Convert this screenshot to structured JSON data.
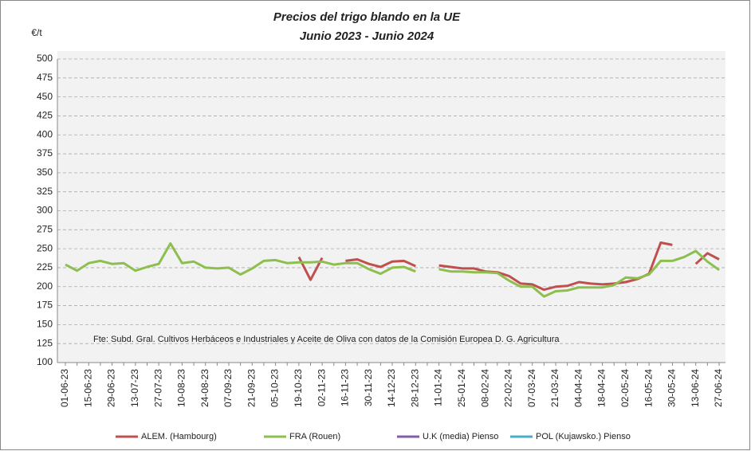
{
  "chart_data": {
    "type": "line",
    "title": "Precios del trigo blando en la UE",
    "subtitle": "Junio 2023 - Junio 2024",
    "y_label": "€/t",
    "annotation": "Fte: Subd. Gral. Cultivos Herbáceos e Industriales y Aceite de Oliva con  datos de la Comisión Europea D. G. Agricultura",
    "categories": [
      "01-06-23",
      null,
      "15-06-23",
      null,
      "29-06-23",
      null,
      "13-07-23",
      null,
      "27-07-23",
      null,
      "10-08-23",
      null,
      "24-08-23",
      null,
      "07-09-23",
      null,
      "21-09-23",
      null,
      "05-10-23",
      null,
      "19-10-23",
      null,
      "02-11-23",
      null,
      "16-11-23",
      null,
      "30-11-23",
      null,
      "14-12-23",
      null,
      "28-12-23",
      null,
      "11-01-24",
      null,
      "25-01-24",
      null,
      "08-02-24",
      null,
      "22-02-24",
      null,
      "07-03-24",
      null,
      "21-03-24",
      null,
      "04-04-24",
      null,
      "18-04-24",
      null,
      "02-05-24",
      null,
      "16-05-24",
      null,
      "30-05-24",
      null,
      "13-06-24",
      null,
      "27-06-24"
    ],
    "series": [
      {
        "name": "ALEM. (Hambourg)",
        "color": "#c0504d",
        "values": [
          null,
          null,
          null,
          null,
          null,
          null,
          null,
          null,
          null,
          null,
          null,
          null,
          null,
          null,
          null,
          null,
          null,
          null,
          null,
          null,
          239,
          209,
          238,
          null,
          234,
          236,
          230,
          226,
          233,
          234,
          227,
          null,
          228,
          226,
          224,
          224,
          220,
          219,
          214,
          204,
          203,
          196,
          200,
          201,
          206,
          204,
          203,
          204,
          206,
          210,
          217,
          258,
          255,
          null,
          230,
          244,
          236
        ]
      },
      {
        "name": "FRA (Rouen)",
        "color": "#8cbf4e",
        "values": [
          229,
          221,
          231,
          234,
          230,
          231,
          221,
          226,
          230,
          257,
          231,
          233,
          225,
          224,
          225,
          216,
          224,
          234,
          235,
          231,
          232,
          232,
          233,
          229,
          231,
          231,
          223,
          217,
          225,
          226,
          220,
          null,
          223,
          220,
          220,
          219,
          219,
          218,
          208,
          200,
          200,
          187,
          194,
          195,
          199,
          199,
          199,
          202,
          212,
          211,
          216,
          234,
          234,
          239,
          247,
          233,
          222
        ]
      },
      {
        "name": "U.K (media) Pienso",
        "color": "#7f5fa8",
        "values": [
          null,
          null,
          null,
          null,
          null,
          null,
          null,
          null,
          null,
          null,
          null,
          null,
          null,
          null,
          null,
          null,
          null,
          null,
          null,
          null,
          null,
          null,
          null,
          null,
          null,
          null,
          null,
          null,
          null,
          null,
          null,
          null,
          null,
          null,
          null,
          null,
          null,
          null,
          null,
          null,
          null,
          null,
          null,
          null,
          null,
          null,
          null,
          null,
          null,
          null,
          null,
          null,
          null,
          null,
          null,
          null,
          null
        ]
      },
      {
        "name": "POL (Kujawsko.) Pienso",
        "color": "#4bacc6",
        "values": [
          null,
          null,
          null,
          null,
          null,
          null,
          null,
          null,
          null,
          null,
          null,
          null,
          null,
          null,
          null,
          null,
          null,
          null,
          null,
          null,
          null,
          null,
          null,
          null,
          null,
          null,
          null,
          null,
          null,
          null,
          null,
          null,
          null,
          null,
          null,
          null,
          null,
          null,
          null,
          null,
          null,
          null,
          null,
          null,
          null,
          null,
          null,
          null,
          null,
          null,
          null,
          null,
          null,
          null,
          null,
          null,
          null
        ]
      }
    ],
    "ylim": [
      100,
      500
    ],
    "yticks": [
      100,
      125,
      150,
      175,
      200,
      225,
      250,
      275,
      300,
      325,
      350,
      375,
      400,
      425,
      450,
      475,
      500
    ],
    "grid": true
  }
}
